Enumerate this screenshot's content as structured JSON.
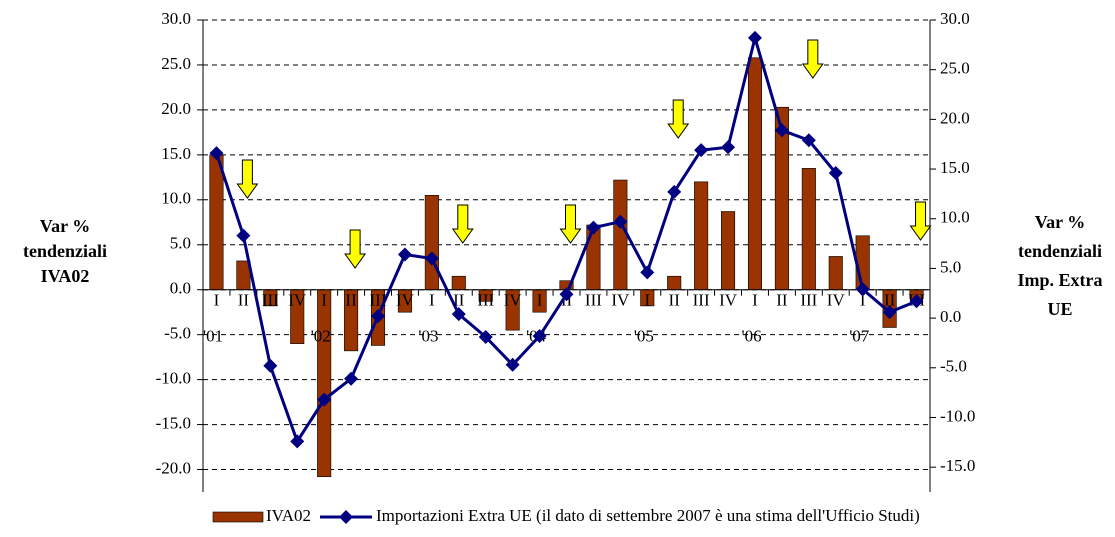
{
  "chart_data": {
    "type": "bar",
    "categories": [
      "I",
      "II",
      "III",
      "IV",
      "I",
      "II",
      "III",
      "IV",
      "I",
      "II",
      "III",
      "IV",
      "I",
      "II",
      "III",
      "IV",
      "I",
      "II",
      "III",
      "IV",
      "I",
      "II",
      "III",
      "IV",
      "I",
      "II",
      "III"
    ],
    "years": [
      "'01",
      null,
      null,
      null,
      "'02",
      null,
      null,
      null,
      "'03",
      null,
      null,
      null,
      "'04",
      null,
      null,
      null,
      "'05",
      null,
      null,
      null,
      "'06",
      null,
      null,
      null,
      "'07",
      null,
      null
    ],
    "series": [
      {
        "name": "IVA02",
        "type": "bar",
        "color": "#993300",
        "values": [
          15.0,
          3.2,
          -1.8,
          -6.0,
          -20.8,
          -6.8,
          -6.2,
          -2.5,
          10.5,
          1.5,
          -1.3,
          -4.5,
          -2.5,
          1.0,
          7.2,
          12.2,
          -1.8,
          1.5,
          12.0,
          8.7,
          25.8,
          20.3,
          13.5,
          3.7,
          6.0,
          -4.2,
          -1.0
        ]
      },
      {
        "name": "Importazioni Extra UE (il dato di settembre 2007 è una stima dell'Ufficio Studi)",
        "type": "line",
        "axis": "y2",
        "color": "#000080",
        "values": [
          16.6,
          8.3,
          -4.8,
          -12.4,
          -8.2,
          -6.1,
          0.2,
          6.4,
          6.0,
          0.4,
          -1.9,
          -4.7,
          -1.8,
          2.4,
          9.1,
          9.7,
          4.6,
          12.7,
          16.9,
          17.2,
          28.2,
          18.9,
          17.9,
          14.6,
          2.9,
          0.6,
          1.7
        ]
      }
    ],
    "ylabel": [
      "Var %",
      "tendenziali",
      "IVA02"
    ],
    "y2label": [
      "Var %",
      "tendenziali",
      "Imp. Extra",
      "UE"
    ],
    "ylim": [
      -22.5,
      30
    ],
    "yticks": [
      {
        "value": -20,
        "label": "-20.0"
      },
      {
        "value": -15,
        "label": "-15.0"
      },
      {
        "value": -10,
        "label": "-10.0"
      },
      {
        "value": -5,
        "label": "-5.0"
      },
      {
        "value": 0,
        "label": "0.0"
      },
      {
        "value": 5,
        "label": "5.0"
      },
      {
        "value": 10,
        "label": "10.0"
      },
      {
        "value": 15,
        "label": "15.0"
      },
      {
        "value": 20,
        "label": "20.0"
      },
      {
        "value": 25,
        "label": "25.0"
      },
      {
        "value": 30,
        "label": "30.0"
      }
    ],
    "y2lim": [
      -17.5,
      30
    ],
    "y2ticks": [
      {
        "value": -15,
        "label": "-15.0"
      },
      {
        "value": -10,
        "label": "-10.0"
      },
      {
        "value": -5,
        "label": "-5.0"
      },
      {
        "value": 0,
        "label": "0.0"
      },
      {
        "value": 5,
        "label": "5.0"
      },
      {
        "value": 10,
        "label": "10.0"
      },
      {
        "value": 15,
        "label": "15.0"
      },
      {
        "value": 20,
        "label": "20.0"
      },
      {
        "value": 25,
        "label": "25.0"
      },
      {
        "value": 30,
        "label": "30.0"
      }
    ],
    "grid": true,
    "legend": "bottom"
  }
}
